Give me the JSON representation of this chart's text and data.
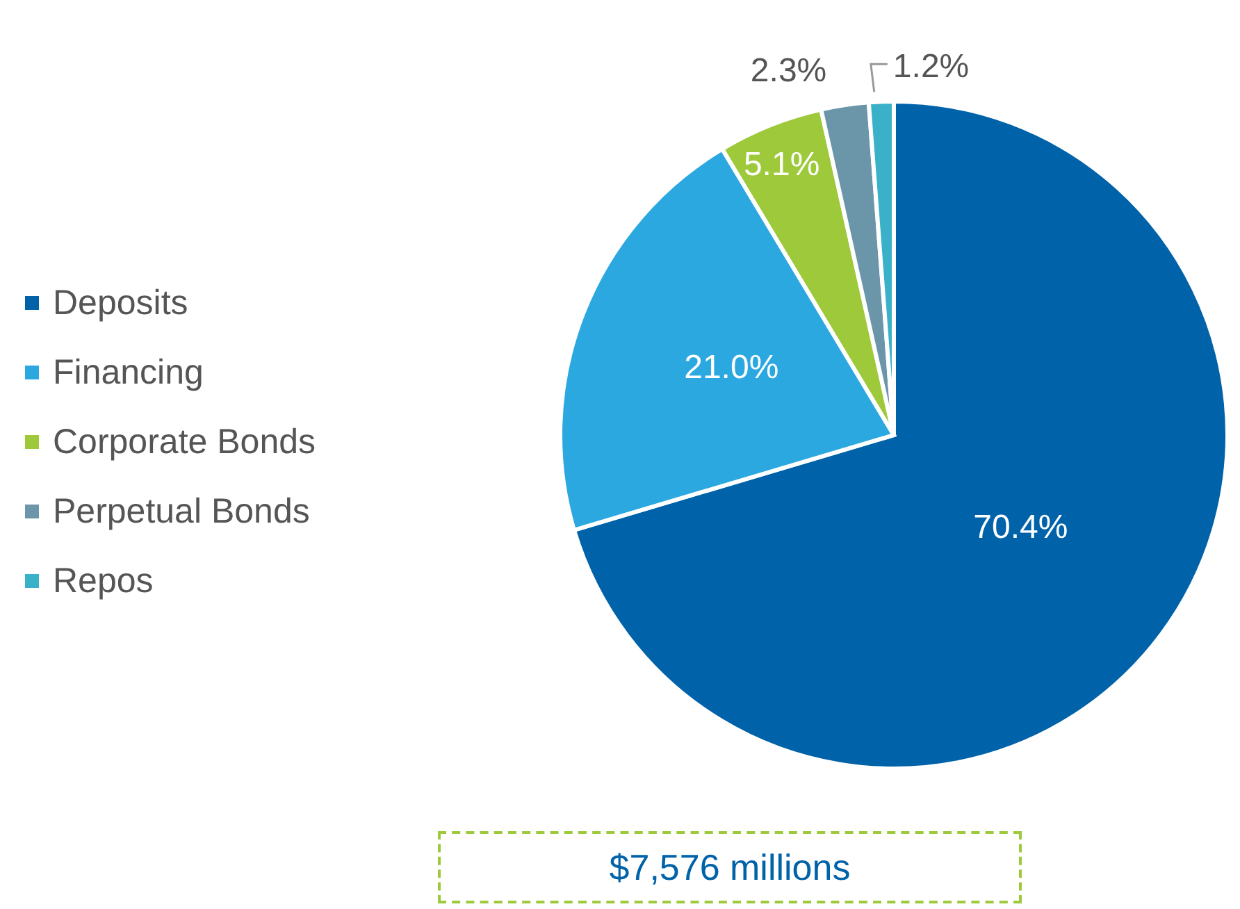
{
  "chart_data": {
    "type": "pie",
    "categories": [
      "Deposits",
      "Financing",
      "Corporate Bonds",
      "Perpetual Bonds",
      "Repos"
    ],
    "values": [
      70.4,
      21.0,
      5.1,
      2.3,
      1.2
    ],
    "colors": [
      "#0062a8",
      "#2ba8e0",
      "#9dc93b",
      "#6b96aa",
      "#3ab1c8"
    ],
    "value_labels": [
      "70.4%",
      "21.0%",
      "5.1%",
      "2.3%",
      "1.2%"
    ],
    "legend": "left",
    "annotations": [
      "$7,576 millions"
    ]
  }
}
